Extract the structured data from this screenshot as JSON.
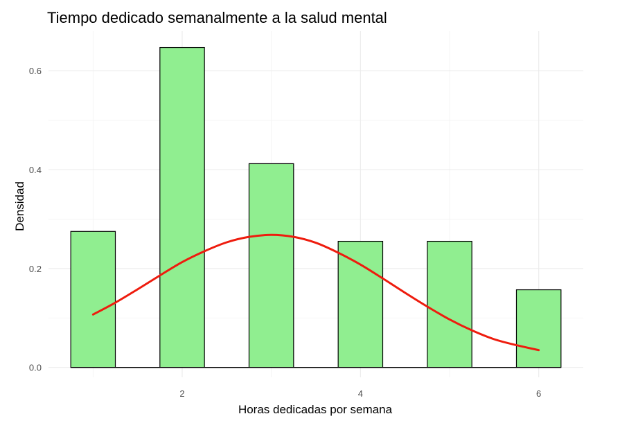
{
  "chart_data": {
    "type": "bar",
    "title": "Tiempo dedicado semanalmente a la salud mental",
    "xlabel": "Horas dedicadas por semana",
    "ylabel": "Densidad",
    "x_ticks": [
      "2",
      "4",
      "6"
    ],
    "y_ticks": [
      "0.0",
      "0.2",
      "0.4",
      "0.6"
    ],
    "xlim": [
      0.5,
      6.5
    ],
    "ylim": [
      -0.02,
      0.68
    ],
    "bars": [
      {
        "x": 1,
        "value": 0.275
      },
      {
        "x": 2,
        "value": 0.647
      },
      {
        "x": 3,
        "value": 0.412
      },
      {
        "x": 4,
        "value": 0.255
      },
      {
        "x": 5,
        "value": 0.255
      },
      {
        "x": 6,
        "value": 0.157
      }
    ],
    "bar_width": 0.5,
    "density_curve": {
      "x": [
        1,
        1.25,
        1.5,
        1.75,
        2,
        2.25,
        2.5,
        2.75,
        3,
        3.25,
        3.5,
        3.75,
        4,
        4.25,
        4.5,
        4.75,
        5,
        5.25,
        5.5,
        5.75,
        6
      ],
      "y": [
        0.107,
        0.131,
        0.158,
        0.186,
        0.213,
        0.235,
        0.253,
        0.264,
        0.268,
        0.264,
        0.252,
        0.232,
        0.208,
        0.18,
        0.151,
        0.123,
        0.097,
        0.075,
        0.057,
        0.045,
        0.035
      ]
    },
    "grid": true,
    "legend": "none",
    "colors": {
      "bar_fill": "#90ee90",
      "bar_outline": "#000000",
      "curve": "#ee1c0e"
    }
  }
}
